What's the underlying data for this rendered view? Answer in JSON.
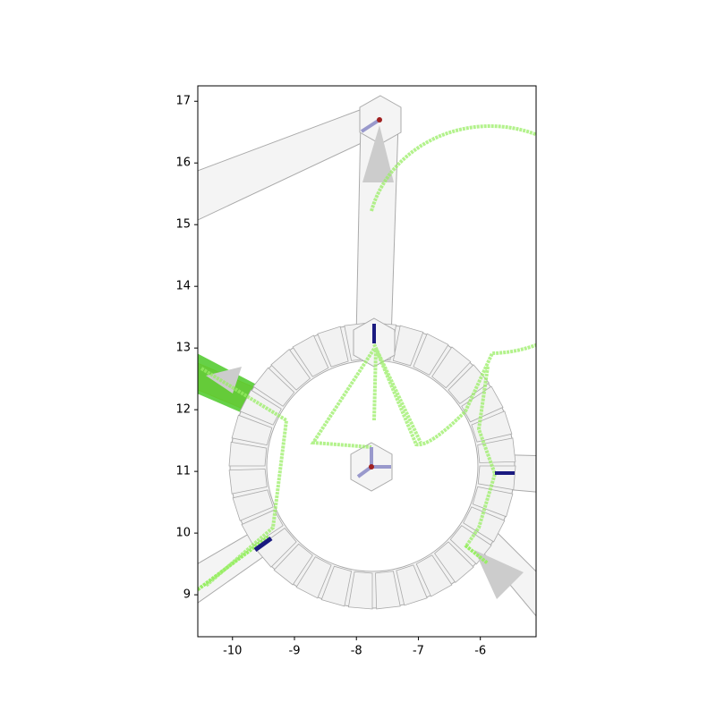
{
  "chart_data": {
    "type": "scatter",
    "xlim": [
      -10.56,
      -5.1
    ],
    "xticks": [
      -10,
      -9,
      -8,
      -7,
      -6
    ],
    "ylim": [
      8.32,
      17.25
    ],
    "yticks": [
      9,
      10,
      11,
      12,
      13,
      14,
      15,
      16,
      17
    ]
  }
}
